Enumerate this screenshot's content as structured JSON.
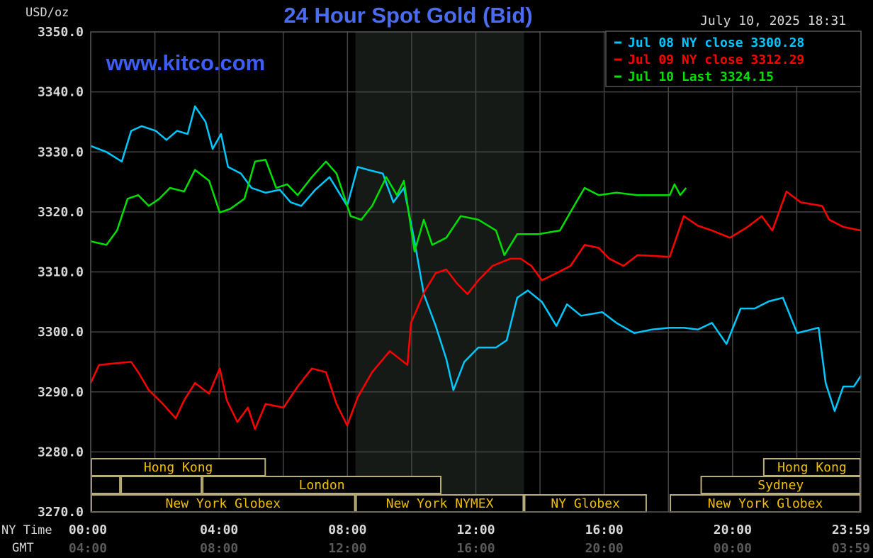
{
  "chart_data": {
    "type": "line",
    "title": "24 Hour Spot Gold (Bid)",
    "ylabel": "USD/oz",
    "watermark": "www.kitco.com",
    "timestamp": "July 10, 2025 18:31",
    "ylim": [
      3270,
      3350
    ],
    "yticks": [
      "3350.0",
      "3340.0",
      "3330.0",
      "3320.0",
      "3310.0",
      "3300.0",
      "3290.0",
      "3280.0",
      "3270.0"
    ],
    "xlim_hours": [
      0,
      24
    ],
    "x_row_labels": {
      "ny": "NY Time",
      "gmt": "GMT"
    },
    "xticks": [
      {
        "hour": 0,
        "ny": "00:00",
        "gmt": "04:00"
      },
      {
        "hour": 4,
        "ny": "04:00",
        "gmt": "08:00"
      },
      {
        "hour": 8,
        "ny": "08:00",
        "gmt": "12:00"
      },
      {
        "hour": 12,
        "ny": "12:00",
        "gmt": "16:00"
      },
      {
        "hour": 16,
        "ny": "16:00",
        "gmt": "20:00"
      },
      {
        "hour": 20,
        "ny": "20:00",
        "gmt": "00:00"
      },
      {
        "hour": 24,
        "ny": "23:59",
        "gmt": "03:59"
      }
    ],
    "grid": true,
    "legend_position": "top-right",
    "shaded_hours": [
      8.25,
      13.5
    ],
    "sessions": [
      {
        "label": "Hong Kong",
        "row": 0,
        "start": 0,
        "end": 5.46
      },
      {
        "label": "Hong Kong",
        "row": 0,
        "start": 20.95,
        "end": 24
      },
      {
        "label": "",
        "row": 1,
        "start": 0,
        "end": 0.93
      },
      {
        "label": "",
        "row": 1,
        "start": 0.93,
        "end": 3.47
      },
      {
        "label": "London",
        "row": 1,
        "start": 3.47,
        "end": 10.93
      },
      {
        "label": "Sydney",
        "row": 1,
        "start": 19.0,
        "end": 24
      },
      {
        "label": "New York Globex",
        "row": 2,
        "start": 0,
        "end": 8.25
      },
      {
        "label": "New York NYMEX",
        "row": 2,
        "start": 8.25,
        "end": 13.5
      },
      {
        "label": "NY Globex",
        "row": 2,
        "start": 13.5,
        "end": 17.33
      },
      {
        "label": "New York Globex",
        "row": 2,
        "start": 18.04,
        "end": 24
      }
    ],
    "series": [
      {
        "name": "Jul 08 NY close 3300.28",
        "color": "#00c8ff",
        "x": [
          0,
          0.49,
          0.97,
          1.26,
          1.59,
          2.03,
          2.36,
          2.69,
          3.02,
          3.25,
          3.58,
          3.8,
          4.06,
          4.28,
          4.68,
          5.01,
          5.45,
          5.89,
          6.23,
          6.56,
          7.0,
          7.44,
          7.99,
          8.32,
          8.65,
          9.1,
          9.43,
          9.76,
          10.09,
          10.38,
          10.75,
          11.08,
          11.3,
          11.64,
          12.08,
          12.63,
          12.96,
          13.29,
          13.62,
          14.06,
          14.51,
          14.84,
          15.28,
          15.94,
          16.38,
          16.94,
          17.49,
          18.04,
          18.48,
          18.92,
          19.36,
          19.81,
          20.25,
          20.69,
          21.13,
          21.57,
          22.01,
          22.68,
          22.9,
          23.18,
          23.45,
          23.78,
          24.0
        ],
        "y": [
          3331,
          3330,
          3328.4,
          3333.5,
          3334.3,
          3333.5,
          3332,
          3333.5,
          3333,
          3337.6,
          3335,
          3330.5,
          3333,
          3327.5,
          3326.4,
          3324,
          3323.2,
          3323.7,
          3321.6,
          3321,
          3323.7,
          3325.8,
          3321,
          3327.5,
          3327,
          3326.4,
          3321.6,
          3324,
          3315.1,
          3306.3,
          3301,
          3295.5,
          3290.3,
          3295,
          3297.4,
          3297.4,
          3298.6,
          3305.7,
          3306.9,
          3305,
          3301,
          3304.6,
          3302.7,
          3303.3,
          3301.5,
          3299.8,
          3300.4,
          3300.7,
          3300.7,
          3300.4,
          3301.5,
          3298,
          3303.9,
          3303.9,
          3305.1,
          3305.7,
          3299.8,
          3300.7,
          3291.5,
          3286.8,
          3290.9,
          3290.9,
          3292.7
        ]
      },
      {
        "name": "Jul 09 NY close 3312.29",
        "color": "#ff0000",
        "x": [
          0,
          0.26,
          0.82,
          1.26,
          1.48,
          1.81,
          2.25,
          2.65,
          2.91,
          3.25,
          3.69,
          4.02,
          4.24,
          4.57,
          4.9,
          5.12,
          5.45,
          6.01,
          6.45,
          6.89,
          7.33,
          7.66,
          7.99,
          8.32,
          8.77,
          9.32,
          9.87,
          9.98,
          10.42,
          10.75,
          11.08,
          11.41,
          11.74,
          12.08,
          12.52,
          13.07,
          13.4,
          13.73,
          14.06,
          14.51,
          14.95,
          15.39,
          15.83,
          16.16,
          16.6,
          17.04,
          18.04,
          18.48,
          18.92,
          19.36,
          19.92,
          20.47,
          20.91,
          21.24,
          21.68,
          22.12,
          22.79,
          23.01,
          23.45,
          24.0
        ],
        "y": [
          3291.5,
          3294.5,
          3294.8,
          3295,
          3293.3,
          3290.3,
          3288,
          3285.6,
          3288.6,
          3291.5,
          3289.7,
          3293.9,
          3288.6,
          3285,
          3287.4,
          3283.8,
          3288,
          3287.4,
          3290.9,
          3293.9,
          3293.3,
          3288,
          3284.4,
          3289.1,
          3293.3,
          3296.8,
          3294.5,
          3301.5,
          3306.9,
          3309.8,
          3310.4,
          3308.1,
          3306.3,
          3308.6,
          3311,
          3312.2,
          3312.2,
          3311,
          3308.6,
          3309.8,
          3311,
          3314.5,
          3314,
          3312.2,
          3311,
          3312.8,
          3312.5,
          3319.3,
          3317.7,
          3316.9,
          3315.7,
          3317.5,
          3319.3,
          3316.9,
          3323.4,
          3321.6,
          3321,
          3318.7,
          3317.5,
          3316.9
        ]
      },
      {
        "name": "Jul 10 Last 3324.15",
        "color": "#00e000",
        "x": [
          0,
          0.49,
          0.82,
          1.15,
          1.48,
          1.81,
          2.14,
          2.47,
          2.91,
          3.25,
          3.69,
          4.02,
          4.35,
          4.79,
          5.12,
          5.45,
          5.78,
          6.12,
          6.45,
          6.89,
          7.33,
          7.66,
          8.1,
          8.43,
          8.77,
          9.21,
          9.54,
          9.76,
          10.09,
          10.38,
          10.64,
          11.08,
          11.53,
          12.08,
          12.63,
          12.89,
          13.29,
          13.95,
          14.62,
          15.06,
          15.39,
          15.83,
          16.38,
          17.04,
          18.04,
          18.19,
          18.37,
          18.55
        ],
        "y": [
          3315.1,
          3314.5,
          3316.9,
          3322.2,
          3322.8,
          3321,
          3322.2,
          3324,
          3323.4,
          3327,
          3325.2,
          3319.9,
          3320.5,
          3322.2,
          3328.4,
          3328.7,
          3324,
          3324.6,
          3322.8,
          3325.8,
          3328.4,
          3326.4,
          3319.3,
          3318.7,
          3321,
          3325.8,
          3322.8,
          3325.2,
          3313.4,
          3318.7,
          3314.5,
          3315.7,
          3319.3,
          3318.7,
          3316.9,
          3312.8,
          3316.3,
          3316.3,
          3316.9,
          3321,
          3324,
          3322.8,
          3323.2,
          3322.8,
          3322.8,
          3324.6,
          3322.8,
          3324
        ]
      }
    ]
  }
}
